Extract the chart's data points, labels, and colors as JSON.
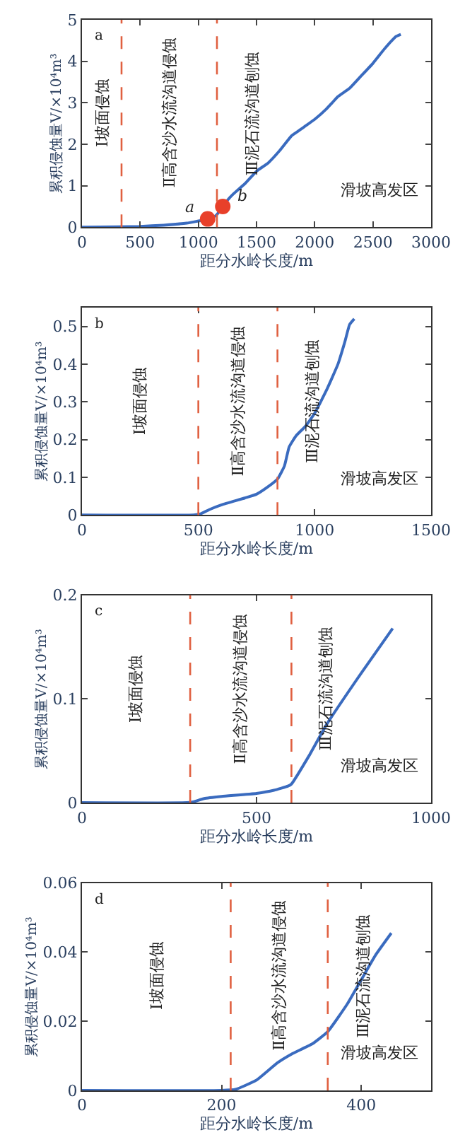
{
  "chart_data": [
    {
      "type": "line",
      "title": "a",
      "xlabel": "距分水岭长度/m",
      "ylabel": "累积侵蚀量V/×10⁴m³",
      "xlim": [
        0,
        3000
      ],
      "xticks": [
        0,
        500,
        1000,
        1500,
        2000,
        2500,
        3000
      ],
      "ylim": [
        0,
        5
      ],
      "yticks": [
        0,
        1,
        2,
        3,
        4,
        5
      ],
      "series": [
        {
          "color": "#3a6bbf",
          "x": [
            0,
            300,
            500,
            700,
            900,
            1000,
            1060,
            1100,
            1150,
            1200,
            1250,
            1300,
            1400,
            1500,
            1600,
            1700,
            1800,
            1850,
            1900,
            2000,
            2100,
            2150,
            2200,
            2300,
            2400,
            2500,
            2600,
            2700,
            2740
          ],
          "values": [
            0,
            0.01,
            0.02,
            0.05,
            0.1,
            0.15,
            0.18,
            0.2,
            0.28,
            0.45,
            0.65,
            0.8,
            1.05,
            1.35,
            1.55,
            1.85,
            2.2,
            2.3,
            2.4,
            2.6,
            2.85,
            3.0,
            3.15,
            3.35,
            3.65,
            3.95,
            4.3,
            4.6,
            4.65
          ]
        },
        {
          "type": "scatter",
          "color": "#e8402a",
          "marker": "circle",
          "x": [
            1080,
            1210
          ],
          "values": [
            0.2,
            0.5
          ]
        }
      ],
      "ref_lines": [
        {
          "axis": "x",
          "value": 340,
          "color": "#e06040",
          "line_style": "dashed"
        },
        {
          "axis": "x",
          "value": 1160,
          "color": "#e06040",
          "line_style": "dashed"
        }
      ],
      "annotations": [
        "Ⅰ坡面侵蚀",
        "Ⅱ高含沙水流沟道侵蚀",
        "Ⅲ泥石流沟道刨蚀",
        "滑坡高发区",
        {
          "text": "a",
          "x": 1080,
          "y": 0.2
        },
        {
          "text": "b",
          "x": 1210,
          "y": 0.5
        }
      ]
    },
    {
      "type": "line",
      "title": "b",
      "xlabel": "距分水岭长度/m",
      "ylabel": "累积侵蚀量V/×10⁴m³",
      "xlim": [
        0,
        1500
      ],
      "xticks": [
        0,
        500,
        1000,
        1500
      ],
      "ylim": [
        0,
        0.55
      ],
      "yticks": [
        0,
        0.1,
        0.2,
        0.3,
        0.4,
        0.5
      ],
      "series": [
        {
          "color": "#3a6bbf",
          "x": [
            0,
            480,
            510,
            550,
            600,
            700,
            750,
            800,
            840,
            870,
            890,
            920,
            960,
            1000,
            1050,
            1100,
            1130,
            1150,
            1170
          ],
          "values": [
            0,
            0,
            0.003,
            0.015,
            0.027,
            0.045,
            0.055,
            0.075,
            0.095,
            0.13,
            0.18,
            0.21,
            0.235,
            0.27,
            0.33,
            0.4,
            0.46,
            0.505,
            0.52
          ]
        }
      ],
      "ref_lines": [
        {
          "axis": "x",
          "value": 500,
          "color": "#e06040",
          "line_style": "dashed"
        },
        {
          "axis": "x",
          "value": 840,
          "color": "#e06040",
          "line_style": "dashed"
        }
      ],
      "annotations": [
        "Ⅰ坡面侵蚀",
        "Ⅱ高含沙水流沟道侵蚀",
        "Ⅲ泥石流沟道刨蚀",
        "滑坡高发区"
      ]
    },
    {
      "type": "line",
      "title": "c",
      "xlabel": "距分水岭长度/m",
      "ylabel": "累积侵蚀量V/×10⁴m³",
      "xlim": [
        0,
        1000
      ],
      "xticks": [
        0,
        500,
        1000
      ],
      "ylim": [
        0,
        0.2
      ],
      "yticks": [
        0,
        0.1,
        0.2
      ],
      "series": [
        {
          "color": "#3a6bbf",
          "x": [
            0,
            300,
            320,
            350,
            400,
            500,
            550,
            590,
            600,
            650,
            700,
            800,
            890
          ],
          "values": [
            0,
            0,
            0.001,
            0.004,
            0.006,
            0.009,
            0.012,
            0.016,
            0.018,
            0.045,
            0.075,
            0.125,
            0.168
          ]
        }
      ],
      "ref_lines": [
        {
          "axis": "x",
          "value": 310,
          "color": "#e06040",
          "line_style": "dashed"
        },
        {
          "axis": "x",
          "value": 600,
          "color": "#e06040",
          "line_style": "dashed"
        }
      ],
      "annotations": [
        "Ⅰ坡面侵蚀",
        "Ⅱ高含沙水流沟道侵蚀",
        "Ⅲ泥石流沟道刨蚀",
        "滑坡高发区"
      ]
    },
    {
      "type": "line",
      "title": "d",
      "xlabel": "距分水岭长度/m",
      "ylabel": "累积侵蚀量V/×10⁴m³",
      "xlim": [
        0,
        500
      ],
      "xticks": [
        0,
        200,
        400
      ],
      "ylim": [
        0,
        0.06
      ],
      "yticks": [
        0,
        0.02,
        0.04,
        0.06
      ],
      "series": [
        {
          "color": "#3a6bbf",
          "x": [
            0,
            200,
            220,
            250,
            280,
            300,
            330,
            352,
            380,
            400,
            420,
            443
          ],
          "values": [
            0,
            0,
            0.0003,
            0.003,
            0.008,
            0.0105,
            0.0135,
            0.017,
            0.025,
            0.032,
            0.039,
            0.0455
          ]
        }
      ],
      "ref_lines": [
        {
          "axis": "x",
          "value": 213,
          "color": "#e06040",
          "line_style": "dashed"
        },
        {
          "axis": "x",
          "value": 352,
          "color": "#e06040",
          "line_style": "dashed"
        }
      ],
      "annotations": [
        "Ⅰ坡面侵蚀",
        "Ⅱ高含沙水流沟道侵蚀",
        "Ⅲ泥石流沟道刨蚀",
        "滑坡高发区"
      ]
    }
  ]
}
